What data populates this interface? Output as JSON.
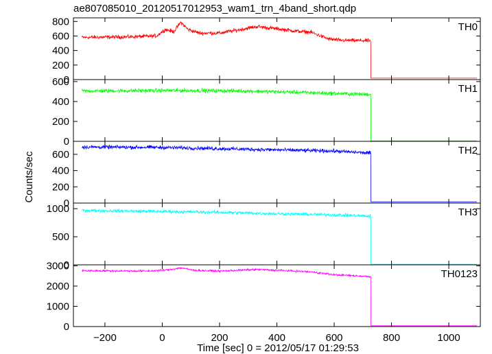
{
  "chart_data": {
    "type": "line",
    "title": "ae807085010_20120517012953_wam1_trn_4band_short.qdp",
    "xlabel": "Time [sec] 0 = 2012/05/17 01:29:53",
    "ylabel": "Counts/sec",
    "xlim": [
      -310,
      1110
    ],
    "x_ticks": [
      -200,
      0,
      200,
      400,
      600,
      800,
      1000
    ],
    "x_tick_labels": [
      "−200",
      "0",
      "200",
      "400",
      "600",
      "800",
      "1000"
    ],
    "data_end_time": 728,
    "grid": false,
    "legend": "none",
    "panels": [
      {
        "name": "TH0",
        "color": "#ff0000",
        "ylim": [
          0,
          850
        ],
        "y_ticks": [
          0,
          200,
          400,
          600,
          800
        ],
        "noise": 40,
        "after_value": 20,
        "trend": [
          [
            -280,
            580
          ],
          [
            -100,
            590
          ],
          [
            -20,
            600
          ],
          [
            10,
            690
          ],
          [
            40,
            660
          ],
          [
            65,
            790
          ],
          [
            90,
            690
          ],
          [
            130,
            640
          ],
          [
            200,
            640
          ],
          [
            260,
            680
          ],
          [
            330,
            730
          ],
          [
            400,
            700
          ],
          [
            460,
            670
          ],
          [
            520,
            650
          ],
          [
            580,
            560
          ],
          [
            620,
            540
          ],
          [
            728,
            535
          ]
        ]
      },
      {
        "name": "TH1",
        "color": "#00ff00",
        "ylim": [
          0,
          620
        ],
        "y_ticks": [
          0,
          200,
          400,
          600
        ],
        "noise": 30,
        "after_value": 5,
        "trend": [
          [
            -280,
            505
          ],
          [
            0,
            510
          ],
          [
            100,
            510
          ],
          [
            300,
            505
          ],
          [
            500,
            490
          ],
          [
            728,
            470
          ]
        ]
      },
      {
        "name": "TH2",
        "color": "#0000ff",
        "ylim": [
          0,
          760
        ],
        "y_ticks": [
          0,
          200,
          400,
          600
        ],
        "noise": 35,
        "after_value": 15,
        "trend": [
          [
            -280,
            690
          ],
          [
            0,
            685
          ],
          [
            200,
            670
          ],
          [
            400,
            655
          ],
          [
            600,
            640
          ],
          [
            728,
            615
          ]
        ]
      },
      {
        "name": "TH3",
        "color": "#00ffff",
        "ylim": [
          0,
          1100
        ],
        "y_ticks": [
          0,
          500,
          1000
        ],
        "noise": 45,
        "after_value": 10,
        "trend": [
          [
            -280,
            970
          ],
          [
            0,
            950
          ],
          [
            200,
            935
          ],
          [
            400,
            910
          ],
          [
            600,
            890
          ],
          [
            728,
            865
          ]
        ]
      },
      {
        "name": "TH0123",
        "color": "#ff00ff",
        "ylim": [
          0,
          3050
        ],
        "y_ticks": [
          0,
          1000,
          2000,
          3000
        ],
        "noise": 70,
        "after_value": 40,
        "trend": [
          [
            -280,
            2760
          ],
          [
            -50,
            2740
          ],
          [
            20,
            2800
          ],
          [
            65,
            2900
          ],
          [
            110,
            2780
          ],
          [
            200,
            2740
          ],
          [
            330,
            2820
          ],
          [
            420,
            2770
          ],
          [
            520,
            2700
          ],
          [
            600,
            2560
          ],
          [
            728,
            2470
          ]
        ]
      }
    ]
  }
}
